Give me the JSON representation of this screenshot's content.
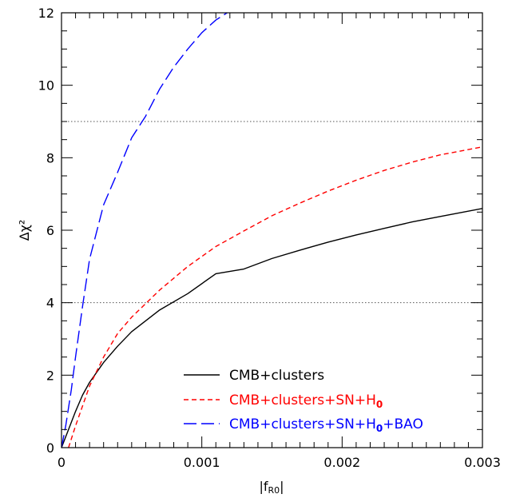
{
  "chart_data": {
    "type": "line",
    "xlabel": "|f",
    "xlabel_sub": "R0",
    "xlabel_suffix": "|",
    "ylabel": "Δχ²",
    "xlim": [
      0,
      0.003
    ],
    "ylim": [
      0,
      12
    ],
    "x_ticks": [
      {
        "value": 0,
        "label": "0"
      },
      {
        "value": 0.001,
        "label": "0.001"
      },
      {
        "value": 0.002,
        "label": "0.002"
      },
      {
        "value": 0.003,
        "label": "0.003"
      }
    ],
    "y_ticks": [
      {
        "value": 0,
        "label": "0"
      },
      {
        "value": 2,
        "label": "2"
      },
      {
        "value": 4,
        "label": "4"
      },
      {
        "value": 6,
        "label": "6"
      },
      {
        "value": 8,
        "label": "8"
      },
      {
        "value": 10,
        "label": "10"
      },
      {
        "value": 12,
        "label": "12"
      }
    ],
    "reference_lines": [
      4,
      9
    ],
    "legend_position": "bottom-right",
    "series": [
      {
        "name": "CMB+clusters",
        "color": "#000000",
        "style": "solid",
        "points": [
          [
            0,
            0
          ],
          [
            5e-05,
            0.5
          ],
          [
            0.0001,
            1.0
          ],
          [
            0.00015,
            1.45
          ],
          [
            0.0002,
            1.8
          ],
          [
            0.0003,
            2.35
          ],
          [
            0.0004,
            2.8
          ],
          [
            0.0005,
            3.2
          ],
          [
            0.0007,
            3.8
          ],
          [
            0.0009,
            4.25
          ],
          [
            0.0011,
            4.8
          ],
          [
            0.0013,
            4.93
          ],
          [
            0.0015,
            5.22
          ],
          [
            0.0017,
            5.45
          ],
          [
            0.0019,
            5.67
          ],
          [
            0.0021,
            5.87
          ],
          [
            0.0023,
            6.05
          ],
          [
            0.0025,
            6.23
          ],
          [
            0.0027,
            6.38
          ],
          [
            0.003,
            6.6
          ]
        ]
      },
      {
        "name": "CMB+clusters+SN+H",
        "name_sub": "0",
        "color": "#ff0000",
        "style": "dashed",
        "points": [
          [
            5e-05,
            0
          ],
          [
            0.0001,
            0.6
          ],
          [
            0.00015,
            1.15
          ],
          [
            0.0002,
            1.7
          ],
          [
            0.0003,
            2.5
          ],
          [
            0.0004,
            3.15
          ],
          [
            0.0005,
            3.6
          ],
          [
            0.0007,
            4.35
          ],
          [
            0.0009,
            5.0
          ],
          [
            0.0011,
            5.55
          ],
          [
            0.0013,
            5.98
          ],
          [
            0.0015,
            6.4
          ],
          [
            0.0017,
            6.75
          ],
          [
            0.0019,
            7.08
          ],
          [
            0.0021,
            7.38
          ],
          [
            0.0023,
            7.65
          ],
          [
            0.0025,
            7.88
          ],
          [
            0.0027,
            8.08
          ],
          [
            0.003,
            8.3
          ]
        ]
      },
      {
        "name": "CMB+clusters+SN+H",
        "name_sub": "0",
        "name_suffix": "+BAO",
        "color": "#0000ff",
        "style": "longdash",
        "points": [
          [
            0,
            0
          ],
          [
            3e-05,
            0.6
          ],
          [
            7e-05,
            1.6
          ],
          [
            0.0001,
            2.5
          ],
          [
            0.00015,
            3.9
          ],
          [
            0.0002,
            5.2
          ],
          [
            0.0003,
            6.7
          ],
          [
            0.0004,
            7.6
          ],
          [
            0.0005,
            8.55
          ],
          [
            0.0006,
            9.15
          ],
          [
            0.0007,
            9.9
          ],
          [
            0.0008,
            10.5
          ],
          [
            0.0009,
            11.0
          ],
          [
            0.001,
            11.45
          ],
          [
            0.0011,
            11.8
          ],
          [
            0.00118,
            12.0
          ]
        ]
      }
    ]
  }
}
